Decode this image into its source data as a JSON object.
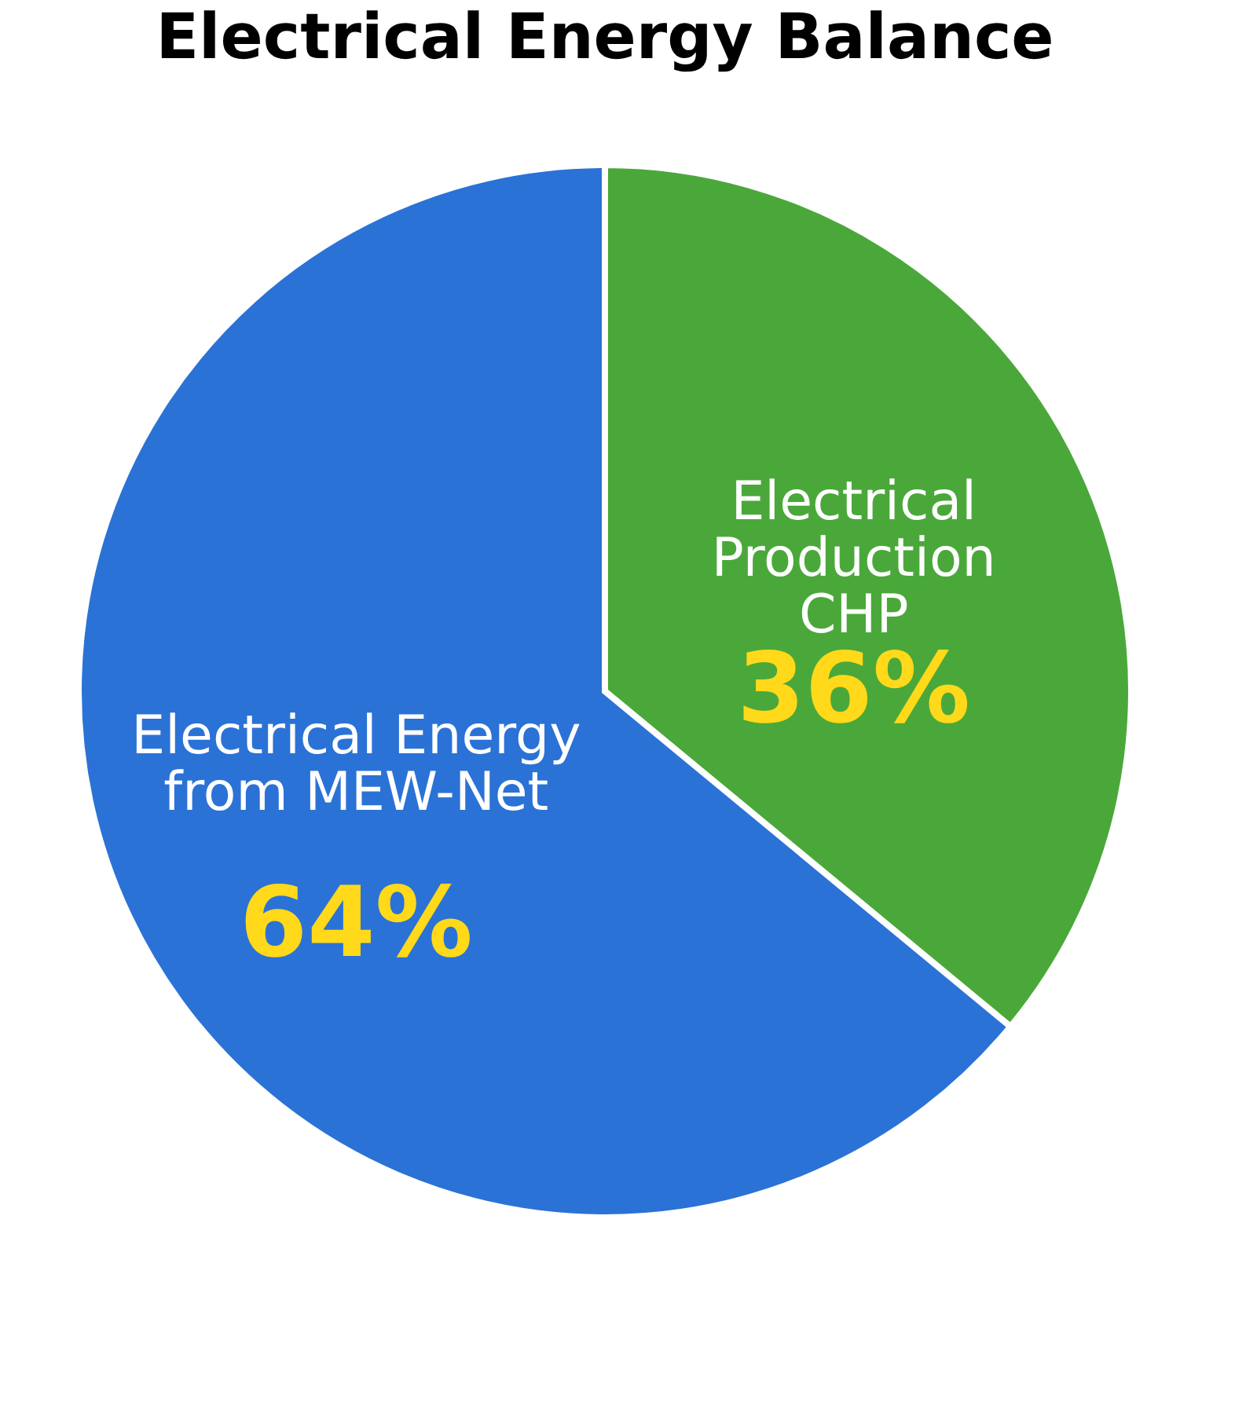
{
  "chart_data": {
    "type": "pie",
    "title": "Electrical Energy Balance",
    "categories": [
      "Electrical\nProduction\nCHP",
      "Electrical Energy\nfrom MEW-Net"
    ],
    "values": [
      36,
      64
    ],
    "colors": [
      "#4aa83a",
      "#2b72d6"
    ],
    "value_labels": [
      "36%",
      "64%"
    ],
    "legend": false
  }
}
